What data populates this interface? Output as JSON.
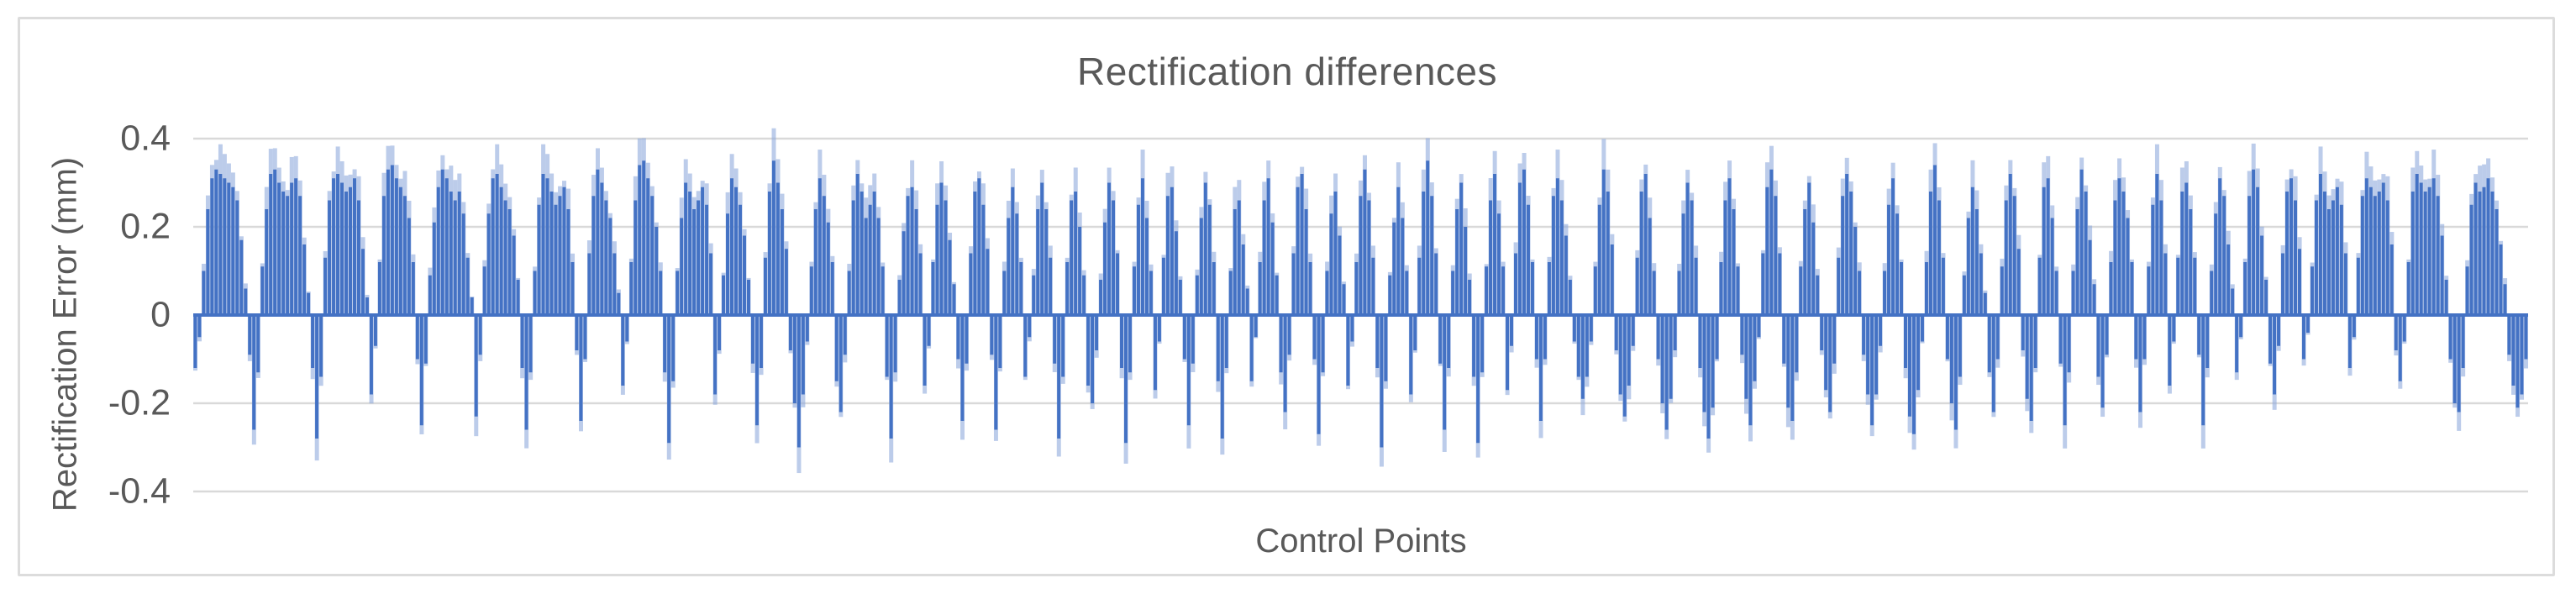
{
  "chart_data": {
    "type": "bar",
    "title": "Rectification differences",
    "xlabel": "Control Points",
    "ylabel": "Rectification Error (mm)",
    "ylim": [
      -0.5,
      0.45
    ],
    "yticks": [
      0.4,
      0.2,
      0,
      -0.2,
      -0.4
    ],
    "ytick_labels": [
      "0.4",
      "0.2",
      "0",
      "-0.2",
      "-0.4"
    ],
    "grid": true,
    "legend": false,
    "x_axis_categories_labeled": false,
    "colors": {
      "bar": "#4472C4",
      "bar_halo": "#8FAADC",
      "gridline": "#D9D9D9",
      "text": "#595959",
      "frame_border": "#DCDCDC",
      "background": "#FFFFFF"
    },
    "values": [
      -0.12,
      -0.05,
      0.1,
      0.24,
      0.31,
      0.33,
      0.32,
      0.31,
      0.3,
      0.29,
      0.26,
      0.17,
      0.06,
      -0.09,
      -0.26,
      -0.13,
      0.11,
      0.24,
      0.32,
      0.33,
      0.3,
      0.28,
      0.27,
      0.3,
      0.31,
      0.27,
      0.16,
      0.05,
      -0.12,
      -0.28,
      -0.14,
      0.13,
      0.26,
      0.31,
      0.32,
      0.3,
      0.28,
      0.29,
      0.31,
      0.26,
      0.15,
      0.04,
      -0.18,
      -0.07,
      0.12,
      0.27,
      0.33,
      0.34,
      0.31,
      0.29,
      0.27,
      0.22,
      0.12,
      -0.1,
      -0.25,
      -0.11,
      0.09,
      0.21,
      0.29,
      0.33,
      0.31,
      0.28,
      0.26,
      0.28,
      0.23,
      0.13,
      0.04,
      -0.23,
      -0.09,
      0.11,
      0.23,
      0.31,
      0.32,
      0.29,
      0.26,
      0.24,
      0.18,
      0.08,
      -0.12,
      -0.26,
      -0.13,
      0.1,
      0.25,
      0.32,
      0.31,
      0.28,
      0.25,
      0.27,
      0.29,
      0.24,
      0.12,
      -0.08,
      -0.24,
      -0.1,
      0.14,
      0.27,
      0.33,
      0.3,
      0.26,
      0.22,
      0.14,
      0.05,
      -0.16,
      -0.06,
      0.12,
      0.26,
      0.34,
      0.35,
      0.31,
      0.27,
      0.2,
      0.1,
      -0.13,
      -0.29,
      -0.15,
      0.1,
      0.22,
      0.3,
      0.28,
      0.24,
      0.26,
      0.29,
      0.25,
      0.14,
      -0.18,
      -0.08,
      0.09,
      0.23,
      0.31,
      0.29,
      0.25,
      0.18,
      0.08,
      -0.11,
      -0.25,
      -0.12,
      0.13,
      0.28,
      0.35,
      0.3,
      0.24,
      0.15,
      -0.08,
      -0.2,
      -0.3,
      -0.18,
      -0.06,
      0.11,
      0.24,
      0.31,
      0.27,
      0.21,
      0.12,
      -0.15,
      -0.22,
      -0.09,
      0.1,
      0.26,
      0.32,
      0.28,
      0.22,
      0.25,
      0.28,
      0.22,
      0.11,
      -0.14,
      -0.28,
      -0.13,
      0.08,
      0.19,
      0.27,
      0.29,
      0.24,
      0.14,
      -0.16,
      -0.07,
      0.12,
      0.25,
      0.3,
      0.26,
      0.17,
      0.07,
      -0.1,
      -0.24,
      -0.11,
      0.14,
      0.28,
      0.31,
      0.25,
      0.15,
      -0.09,
      -0.26,
      -0.12,
      0.1,
      0.22,
      0.29,
      0.23,
      0.12,
      -0.14,
      -0.05,
      0.09,
      0.24,
      0.3,
      0.24,
      0.13,
      -0.11,
      -0.28,
      -0.14,
      0.12,
      0.26,
      0.28,
      0.2,
      0.09,
      -0.16,
      -0.2,
      -0.08,
      0.08,
      0.21,
      0.3,
      0.26,
      0.14,
      -0.12,
      -0.29,
      -0.13,
      0.11,
      0.25,
      0.31,
      0.22,
      0.1,
      -0.17,
      -0.06,
      0.13,
      0.27,
      0.29,
      0.19,
      0.08,
      -0.1,
      -0.25,
      -0.11,
      0.09,
      0.22,
      0.3,
      0.25,
      0.12,
      -0.15,
      -0.28,
      -0.12,
      0.1,
      0.24,
      0.26,
      0.16,
      0.06,
      -0.15,
      -0.05,
      0.12,
      0.26,
      0.31,
      0.21,
      0.09,
      -0.13,
      -0.22,
      -0.09,
      0.14,
      0.29,
      0.32,
      0.24,
      0.12,
      -0.1,
      -0.27,
      -0.13,
      0.1,
      0.23,
      0.28,
      0.18,
      0.07,
      -0.16,
      -0.06,
      0.12,
      0.27,
      0.33,
      0.26,
      0.13,
      -0.12,
      -0.3,
      -0.15,
      0.09,
      0.21,
      0.29,
      0.22,
      0.1,
      -0.18,
      -0.08,
      0.13,
      0.28,
      0.35,
      0.27,
      0.14,
      -0.11,
      -0.26,
      -0.12,
      0.1,
      0.24,
      0.3,
      0.2,
      0.08,
      -0.14,
      -0.29,
      -0.13,
      0.11,
      0.26,
      0.32,
      0.23,
      0.11,
      -0.17,
      -0.07,
      0.14,
      0.3,
      0.33,
      0.25,
      0.12,
      -0.1,
      -0.24,
      -0.1,
      0.12,
      0.27,
      0.31,
      0.26,
      0.18,
      0.08,
      -0.06,
      -0.14,
      -0.19,
      -0.14,
      -0.06,
      0.11,
      0.25,
      0.33,
      0.28,
      0.16,
      -0.08,
      -0.18,
      -0.23,
      -0.16,
      -0.07,
      0.13,
      0.28,
      0.32,
      0.22,
      0.1,
      -0.1,
      -0.2,
      -0.26,
      -0.19,
      -0.08,
      0.1,
      0.23,
      0.3,
      0.26,
      0.13,
      -0.12,
      -0.22,
      -0.28,
      -0.21,
      -0.1,
      0.12,
      0.26,
      0.31,
      0.24,
      0.11,
      -0.09,
      -0.19,
      -0.25,
      -0.15,
      -0.05,
      0.14,
      0.29,
      0.33,
      0.27,
      0.14,
      -0.11,
      -0.21,
      -0.24,
      -0.13,
      0.11,
      0.24,
      0.3,
      0.21,
      0.09,
      -0.08,
      -0.17,
      -0.22,
      -0.11,
      0.13,
      0.27,
      0.32,
      0.28,
      0.2,
      0.1,
      -0.09,
      -0.18,
      -0.25,
      -0.18,
      -0.07,
      0.1,
      0.25,
      0.31,
      0.23,
      0.12,
      -0.12,
      -0.23,
      -0.27,
      -0.17,
      -0.06,
      0.12,
      0.28,
      0.34,
      0.26,
      0.13,
      -0.1,
      -0.2,
      -0.26,
      -0.14,
      0.09,
      0.22,
      0.29,
      0.24,
      0.14,
      0.05,
      -0.13,
      -0.22,
      -0.1,
      0.11,
      0.26,
      0.32,
      0.27,
      0.15,
      -0.08,
      -0.19,
      -0.24,
      -0.12,
      0.13,
      0.29,
      0.31,
      0.22,
      0.1,
      -0.11,
      -0.25,
      -0.13,
      0.1,
      0.24,
      0.33,
      0.28,
      0.17,
      0.07,
      -0.14,
      -0.21,
      -0.09,
      0.12,
      0.26,
      0.31,
      0.28,
      0.22,
      0.12,
      -0.1,
      -0.22,
      -0.1,
      0.11,
      0.25,
      0.32,
      0.26,
      0.14,
      -0.16,
      -0.06,
      0.13,
      0.28,
      0.3,
      0.24,
      0.13,
      -0.09,
      -0.25,
      -0.12,
      0.1,
      0.23,
      0.31,
      0.27,
      0.16,
      0.06,
      -0.13,
      -0.05,
      0.12,
      0.27,
      0.33,
      0.29,
      0.18,
      0.08,
      -0.11,
      -0.18,
      -0.07,
      0.14,
      0.28,
      0.31,
      0.26,
      0.15,
      -0.1,
      -0.04,
      0.11,
      0.26,
      0.32,
      0.28,
      0.24,
      0.26,
      0.29,
      0.25,
      0.14,
      -0.12,
      -0.05,
      0.13,
      0.27,
      0.31,
      0.29,
      0.27,
      0.28,
      0.3,
      0.26,
      0.16,
      -0.08,
      -0.15,
      -0.06,
      0.12,
      0.28,
      0.32,
      0.3,
      0.28,
      0.29,
      0.31,
      0.27,
      0.18,
      0.08,
      -0.1,
      -0.2,
      -0.22,
      -0.12,
      0.11,
      0.25,
      0.3,
      0.28,
      0.29,
      0.31,
      0.28,
      0.24,
      0.16,
      0.07,
      -0.09,
      -0.16,
      -0.21,
      -0.18,
      -0.1
    ]
  }
}
